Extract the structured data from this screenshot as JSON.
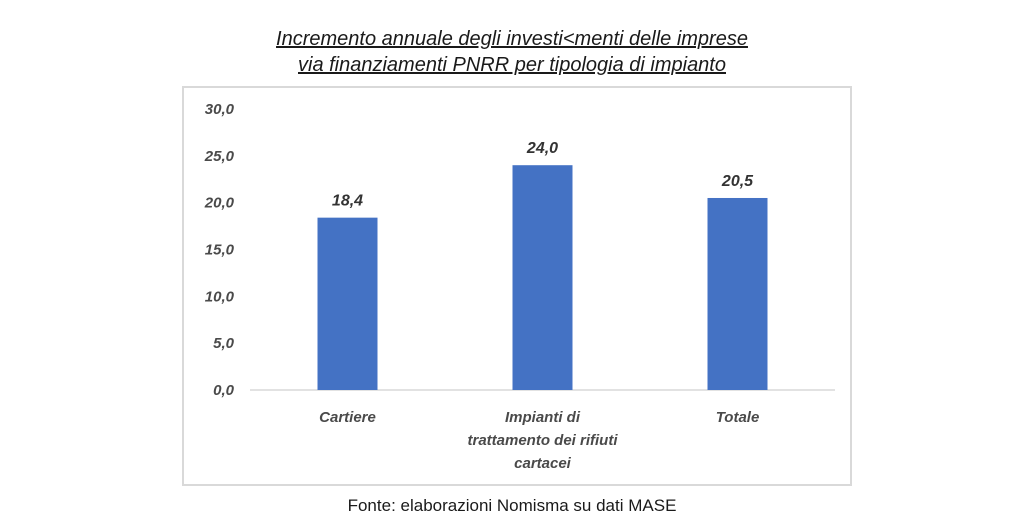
{
  "chart_data": {
    "type": "bar",
    "title_line1": "Incremento annuale degli investi<menti delle imprese",
    "title_line2": "via finanziamenti PNRR per tipologia di impianto",
    "categories": [
      [
        "Cartiere"
      ],
      [
        "Impianti di",
        "trattamento dei rifiuti",
        "cartacei"
      ],
      [
        "Totale"
      ]
    ],
    "values": [
      18.4,
      24.0,
      20.5
    ],
    "value_labels": [
      "18,4",
      "24,0",
      "20,5"
    ],
    "yticks": [
      {
        "value": 0,
        "label": "0,0"
      },
      {
        "value": 5,
        "label": "5,0"
      },
      {
        "value": 10,
        "label": "10,0"
      },
      {
        "value": 15,
        "label": "15,0"
      },
      {
        "value": 20,
        "label": "20,0"
      },
      {
        "value": 25,
        "label": "25,0"
      },
      {
        "value": 30,
        "label": "30,0"
      }
    ],
    "ylim": [
      0,
      30
    ],
    "grid": false,
    "legend": "none",
    "xlabel": "",
    "ylabel": "",
    "bar_color": "#4472C4",
    "axis_color": "#d9d9d9"
  },
  "source": "Fonte: elaborazioni Nomisma su dati MASE"
}
